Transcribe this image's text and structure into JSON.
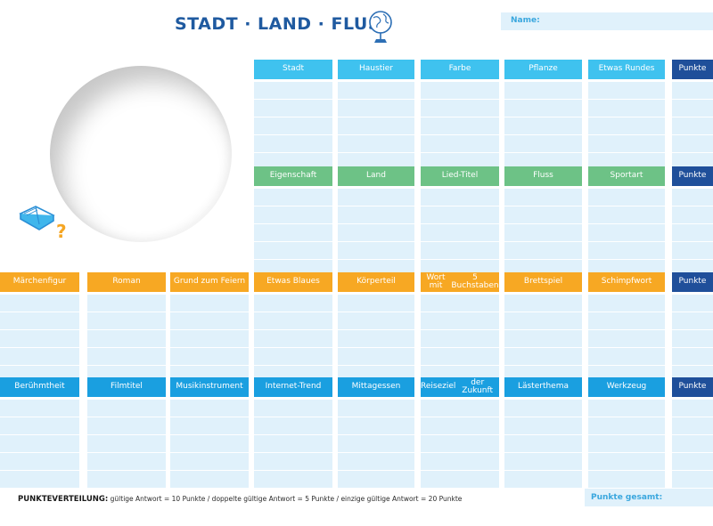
{
  "title": "STADT · LAND · FLUSS",
  "name_label": "Name:",
  "question_mark": "?",
  "colors": {
    "cyan": "#3fc2ef",
    "green": "#6dc286",
    "orange": "#f7a823",
    "blue": "#1a9fe0",
    "points": "#1f4f9a",
    "cell": "#e0f1fb"
  },
  "icons": [
    "globe-icon",
    "book-icon"
  ],
  "sections": [
    {
      "color": "cyan",
      "headers": [
        "Stadt",
        "Haustier",
        "Farbe",
        "Pflanze",
        "Etwas Rundes",
        "Punkte"
      ]
    },
    {
      "color": "green",
      "headers": [
        "Eigenschaft",
        "Land",
        "Lied-Titel",
        "Fluss",
        "Sportart",
        "Punkte"
      ]
    },
    {
      "color": "orange",
      "headers": [
        "Märchenfigur",
        "Roman",
        "Grund zum Feiern",
        "Etwas Blaues",
        "Körperteil",
        "Wort mit\n5 Buchstaben",
        "Brettspiel",
        "Schimpfwort",
        "Punkte"
      ]
    },
    {
      "color": "blue",
      "headers": [
        "Berühmtheit",
        "Filmtitel",
        "Musikinstrument",
        "Internet-Trend",
        "Mittagessen",
        "Reiseziel\nder Zukunft",
        "Lästerthema",
        "Werkzeug",
        "Punkte"
      ]
    }
  ],
  "footer": {
    "label": "PUNKTEVERTEILUNG:",
    "text": "gültige Antwort = 10 Punkte / doppelte gültige Antwort = 5 Punkte / einzige gültige Antwort = 20 Punkte"
  },
  "total_label": "Punkte gesamt:"
}
